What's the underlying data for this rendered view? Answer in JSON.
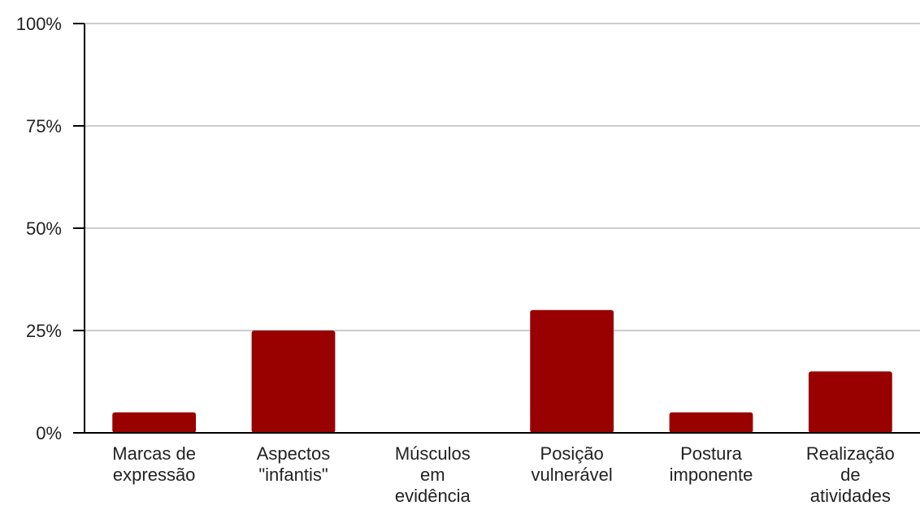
{
  "chart_data": {
    "type": "bar",
    "categories": [
      [
        "Marcas de",
        "expressão"
      ],
      [
        "Aspectos",
        "\"infantis\""
      ],
      [
        "Músculos",
        "em",
        "evidência"
      ],
      [
        "Posição",
        "vulnerável"
      ],
      [
        "Postura",
        "imponente"
      ],
      [
        "Realização",
        "de",
        "atividades"
      ]
    ],
    "values": [
      5,
      25,
      0,
      30,
      5,
      15
    ],
    "value_unit": "%",
    "ylim": [
      0,
      100
    ],
    "yticks": [
      0,
      25,
      50,
      75,
      100
    ],
    "ytick_labels": [
      "0%",
      "25%",
      "50%",
      "75%",
      "100%"
    ],
    "title": "",
    "xlabel": "",
    "ylabel": "",
    "grid": true,
    "legend": "none",
    "colors": {
      "bar": "#990000",
      "grid": "#cccccc",
      "axis": "#000000",
      "text": "#222222"
    }
  }
}
